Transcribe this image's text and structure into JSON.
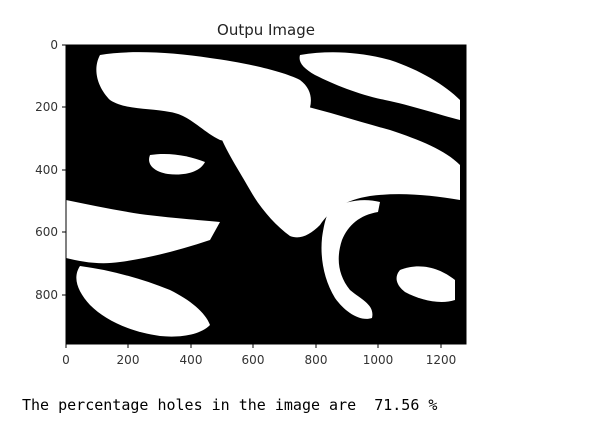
{
  "plot": {
    "title": "Outpu Image",
    "x_ticks": [
      "0",
      "200",
      "400",
      "600",
      "800",
      "1000",
      "1200"
    ],
    "y_ticks": [
      "0",
      "200",
      "400",
      "600",
      "800"
    ]
  },
  "output": {
    "prefix": "The percentage holes in the image are",
    "value": "71.56",
    "suffix": "%"
  },
  "colors": {
    "background": "#ffffff",
    "image_dark": "#000000",
    "image_light": "#ffffff"
  }
}
